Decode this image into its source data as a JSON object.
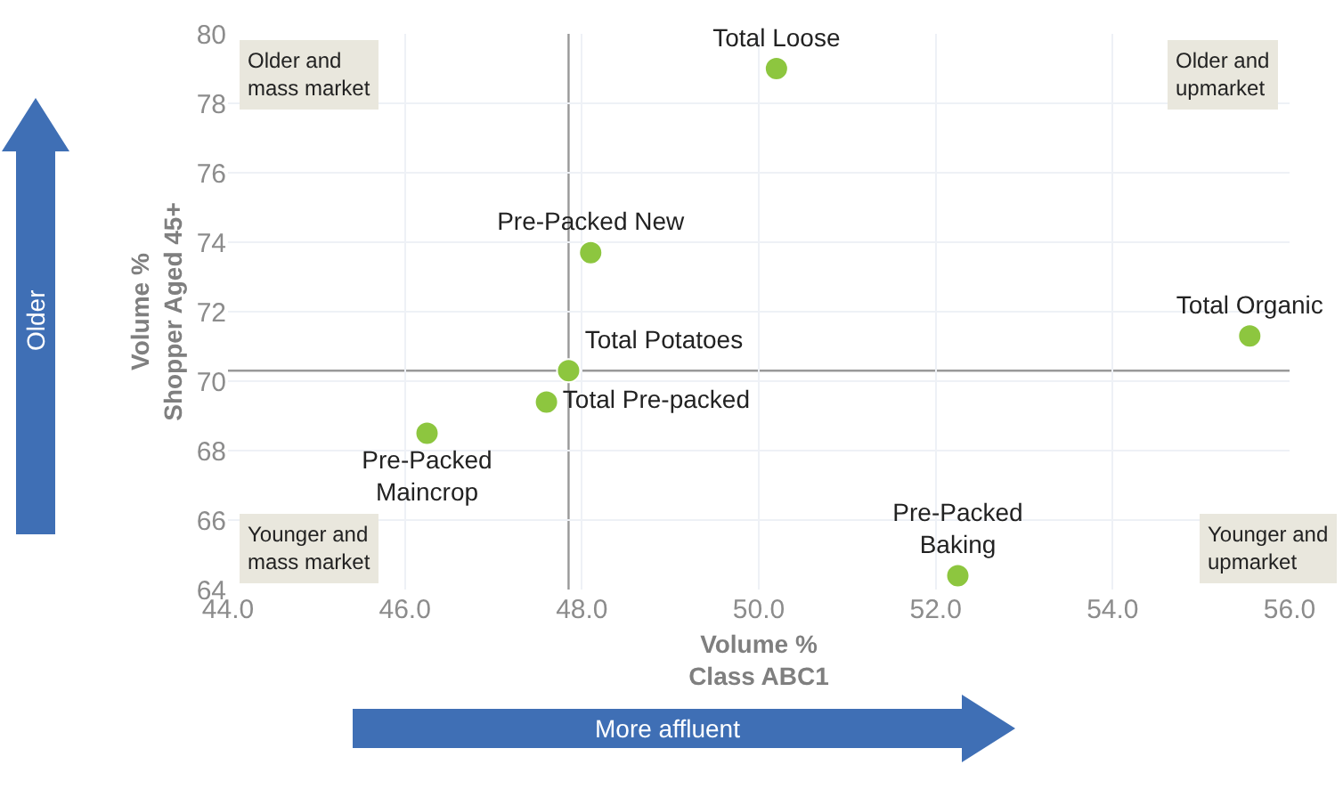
{
  "chart_data": {
    "type": "scatter",
    "xlabel": "Volume %\nClass ABC1",
    "ylabel": "Volume %\nShopper Aged 45+",
    "series": [
      {
        "name": "Total Loose",
        "color": "#8dc63f",
        "x": [
          50.2
        ],
        "values": [
          79.0
        ]
      },
      {
        "name": "Pre-Packed New",
        "color": "#8dc63f",
        "x": [
          48.1
        ],
        "values": [
          73.7
        ]
      },
      {
        "name": "Total Potatoes",
        "color": "#8dc63f",
        "x": [
          47.85
        ],
        "values": [
          70.3
        ]
      },
      {
        "name": "Total Pre-packed",
        "color": "#8dc63f",
        "x": [
          47.6
        ],
        "values": [
          69.4
        ]
      },
      {
        "name": "Pre-Packed Maincrop",
        "color": "#8dc63f",
        "x": [
          46.25
        ],
        "values": [
          68.5
        ]
      },
      {
        "name": "Total Organic",
        "color": "#8dc63f",
        "x": [
          55.55
        ],
        "values": [
          71.3
        ]
      },
      {
        "name": "Pre-Packed Baking",
        "color": "#8dc63f",
        "x": [
          52.25
        ],
        "values": [
          64.4
        ]
      }
    ],
    "xlim": [
      44,
      56
    ],
    "ylim": [
      64,
      80
    ],
    "xticks": [
      {
        "value": 44,
        "label": "44.0"
      },
      {
        "value": 46,
        "label": "46.0"
      },
      {
        "value": 48,
        "label": "48.0"
      },
      {
        "value": 50,
        "label": "50.0"
      },
      {
        "value": 52,
        "label": "52.0"
      },
      {
        "value": 54,
        "label": "54.0"
      },
      {
        "value": 56,
        "label": "56.0"
      }
    ],
    "yticks": [
      64,
      66,
      68,
      70,
      72,
      74,
      76,
      78,
      80
    ],
    "ref_lines": [
      {
        "axis": "x",
        "value": 47.85,
        "color": "#999999"
      },
      {
        "axis": "y",
        "value": 70.3,
        "color": "#999999"
      }
    ],
    "annotations": [
      "Older and\nmass market",
      "Older and\nupmarket",
      "Younger and\nmass market",
      "Younger and\nupmarket",
      "Older",
      "More affluent"
    ],
    "grid": true,
    "legend": false,
    "marker": "circle"
  }
}
